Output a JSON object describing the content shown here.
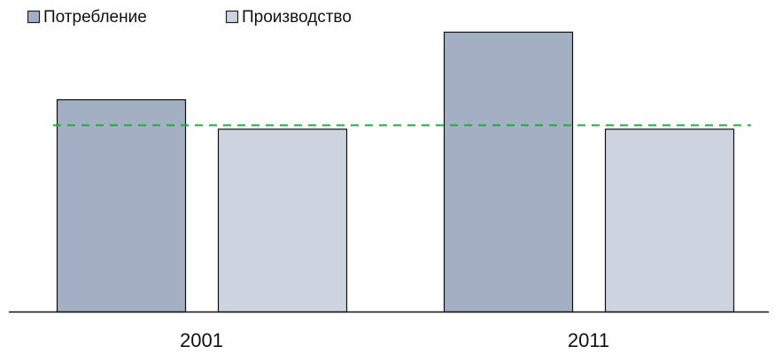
{
  "chart_data": {
    "type": "bar",
    "categories": [
      "2001",
      "2011"
    ],
    "series": [
      {
        "name": "Потребление",
        "values": [
          245,
          323
        ],
        "color": "#a3afc2"
      },
      {
        "name": "Производство",
        "values": [
          211,
          211
        ],
        "color": "#cdd3df"
      }
    ],
    "reference_line": {
      "value": 215,
      "color": "#22aa44",
      "style": "dashed"
    },
    "title": "",
    "xlabel": "",
    "ylabel": "",
    "ylim": [
      0,
      330
    ],
    "y_axis_visible": false,
    "grid": false,
    "legend_position": "top-left",
    "bar_outline_color": "#111111"
  }
}
